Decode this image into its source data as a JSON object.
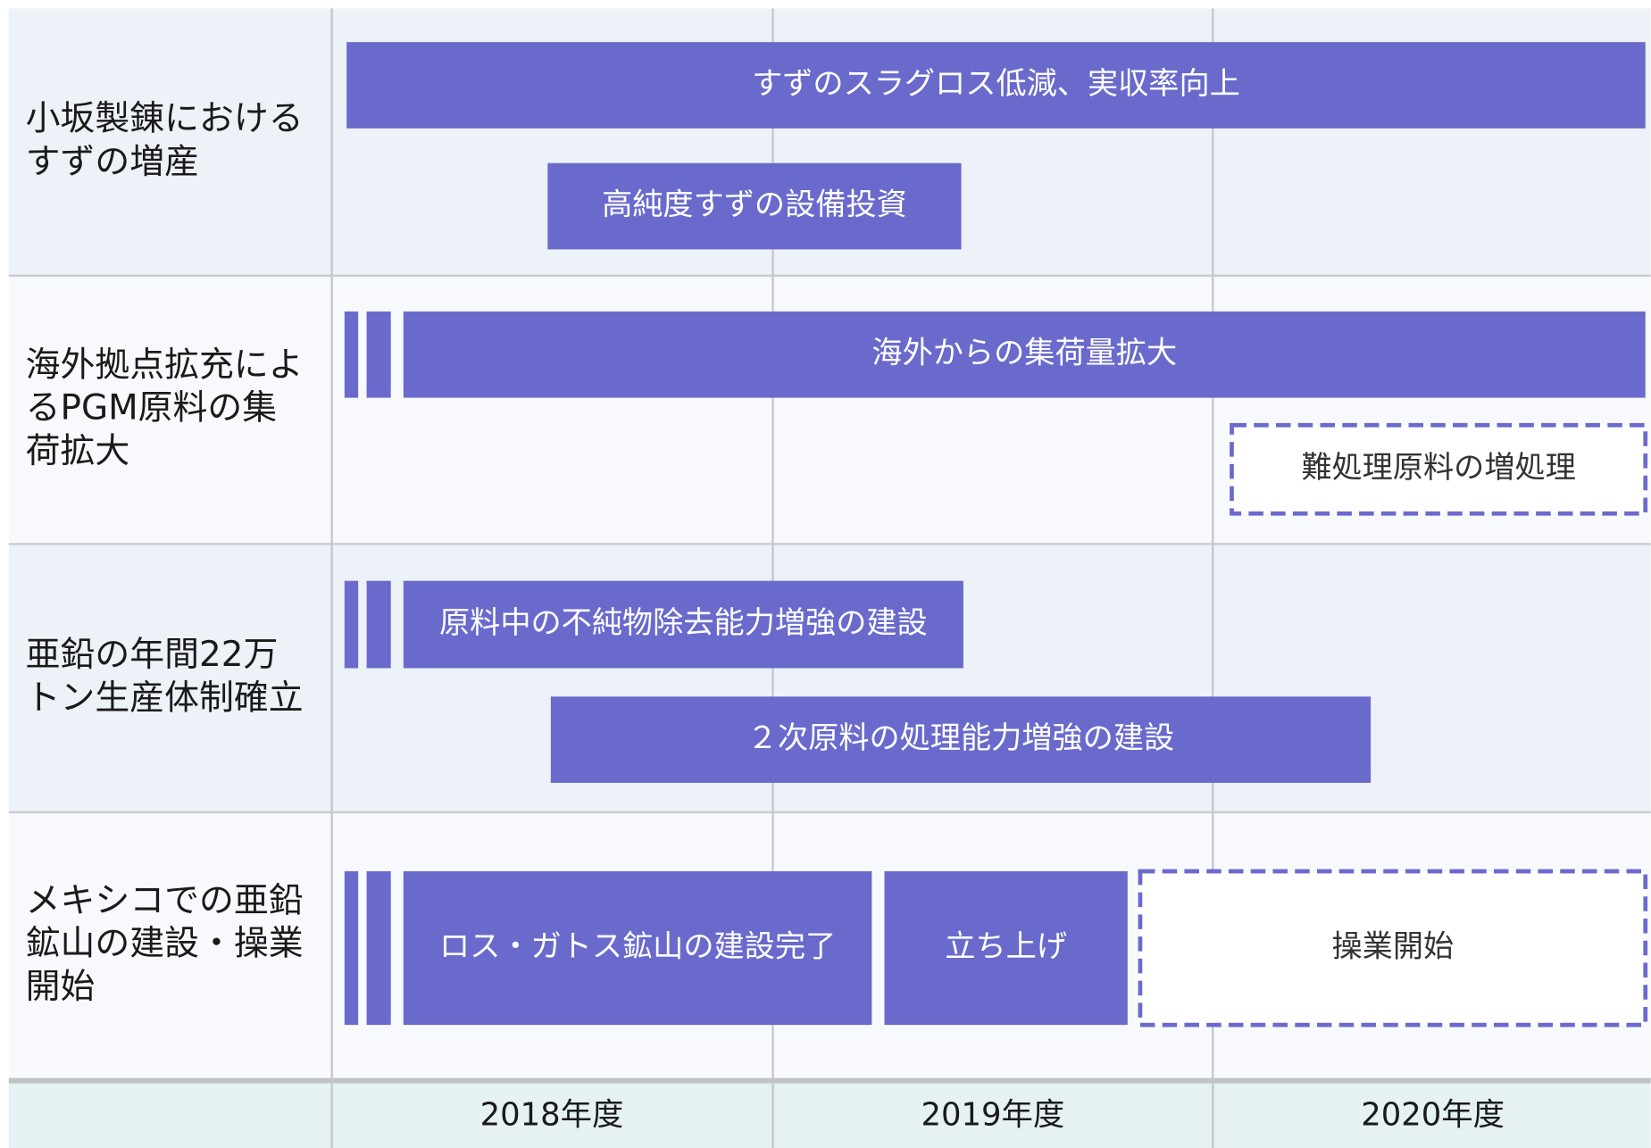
{
  "rows": [
    {
      "label_lines": [
        "小坂製錬における",
        "すずの増産"
      ],
      "tasks": [
        {
          "label": "すずのスラグロス低減、実収率向上"
        },
        {
          "label": "高純度すずの設備投資"
        }
      ]
    },
    {
      "label_lines": [
        "海外拠点拡充によ",
        "るPGM原料の集",
        "荷拡大"
      ],
      "tasks": [
        {
          "label": "海外からの集荷量拡大"
        },
        {
          "label": "難処理原料の増処理"
        }
      ]
    },
    {
      "label_lines": [
        "亜鉛の年間22万",
        "トン生産体制確立"
      ],
      "tasks": [
        {
          "label": "原料中の不純物除去能力増強の建設"
        },
        {
          "label": "２次原料の処理能力増強の建設"
        }
      ]
    },
    {
      "label_lines": [
        "メキシコでの亜鉛",
        "鉱山の建設・操業",
        "開始"
      ],
      "tasks": [
        {
          "label": "ロス・ガトス鉱山の建設完了"
        },
        {
          "label": "立ち上げ"
        },
        {
          "label": "操業開始"
        }
      ]
    }
  ],
  "years": [
    "2018年度",
    "2019年度",
    "2020年度"
  ]
}
